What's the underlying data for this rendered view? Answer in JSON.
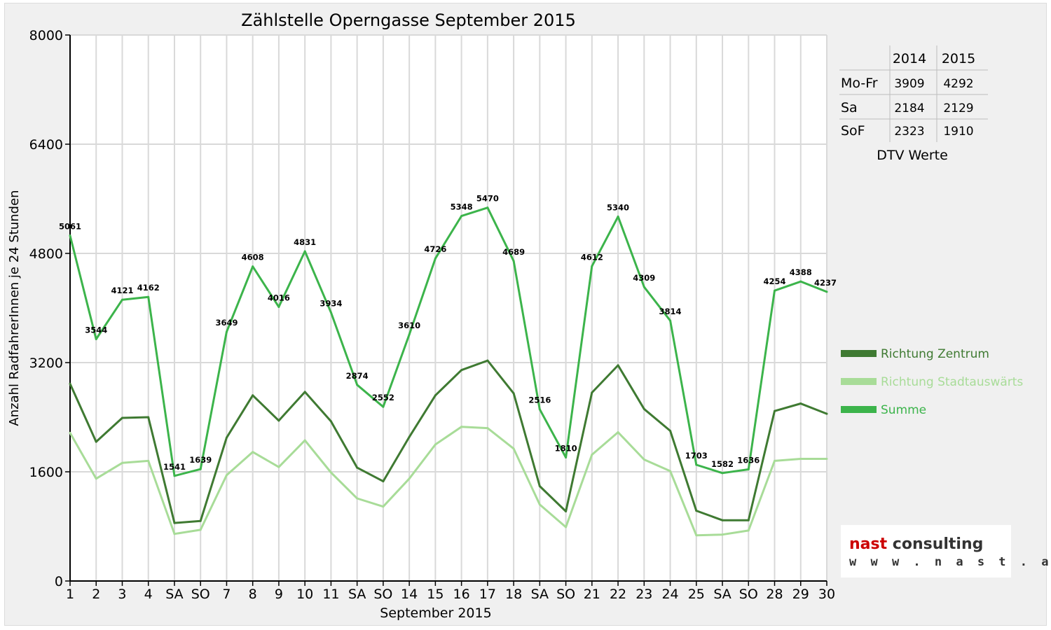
{
  "chart_data": {
    "type": "line",
    "title": "Zählstelle Operngasse September 2015",
    "xlabel": "September 2015",
    "ylabel": "Anzahl RadfahrerInnen je 24 Stunden",
    "ylim": [
      0,
      8000
    ],
    "yticks": [
      "0",
      "1600",
      "3200",
      "4800",
      "6400",
      "8000"
    ],
    "categories": [
      "1",
      "2",
      "3",
      "4",
      "SA",
      "SO",
      "7",
      "8",
      "9",
      "10",
      "11",
      "SA",
      "SO",
      "14",
      "15",
      "16",
      "17",
      "18",
      "SA",
      "SO",
      "21",
      "22",
      "23",
      "24",
      "25",
      "SA",
      "SO",
      "28",
      "29",
      "30"
    ],
    "weekend_colors": {
      "SA": "#000000",
      "SO": "#e00000"
    },
    "grid": true,
    "legend_position": "right",
    "series": [
      {
        "name": "Richtung Zentrum",
        "color": "#3f7a32",
        "values": [
          2890,
          2040,
          2390,
          2400,
          850,
          880,
          2100,
          2720,
          2350,
          2770,
          2340,
          1660,
          1460,
          2110,
          2720,
          3090,
          3230,
          2750,
          1390,
          1020,
          2760,
          3160,
          2520,
          2200,
          1030,
          890,
          890,
          2490,
          2600,
          2450
        ]
      },
      {
        "name": "Richtung Stadtauswärts",
        "color": "#a8dc98",
        "values": [
          2170,
          1500,
          1730,
          1760,
          690,
          750,
          1550,
          1890,
          1670,
          2060,
          1590,
          1210,
          1090,
          1500,
          2000,
          2260,
          2240,
          1940,
          1120,
          790,
          1850,
          2180,
          1780,
          1610,
          670,
          680,
          740,
          1760,
          1790,
          1790
        ]
      },
      {
        "name": "Summe",
        "color": "#3cb44b",
        "values": [
          5061,
          3544,
          4121,
          4162,
          1541,
          1639,
          3649,
          4608,
          4016,
          4831,
          3934,
          2874,
          2552,
          3610,
          4726,
          5348,
          5470,
          4689,
          2516,
          1810,
          4612,
          5340,
          4309,
          3814,
          1703,
          1582,
          1636,
          4254,
          4388,
          4237
        ]
      }
    ],
    "data_labels": [
      "5061",
      "3544",
      "4121",
      "4162",
      "1541",
      "1639",
      "3649",
      "4608",
      "4016",
      "4831",
      "3934",
      "2874",
      "2552",
      "3610",
      "4726",
      "5348",
      "5470",
      "4689",
      "2516",
      "1810",
      "4612",
      "5340",
      "4309",
      "3814",
      "1703",
      "1582",
      "1636",
      "4254",
      "4388",
      "4237"
    ]
  },
  "dtv_table": {
    "headers": [
      "",
      "2014",
      "2015"
    ],
    "rows": [
      {
        "label": "Mo-Fr",
        "v2014": "3909",
        "v2015": "4292"
      },
      {
        "label": "Sa",
        "v2014": "2184",
        "v2015": "2129"
      },
      {
        "label": "SoF",
        "v2014": "2323",
        "v2015": "1910"
      }
    ],
    "caption": "DTV Werte"
  },
  "logo": {
    "name_part1": "nast",
    "name_part2": " consulting",
    "url": "w w w . n a s t . a t",
    "color_name": "#cc0000"
  }
}
